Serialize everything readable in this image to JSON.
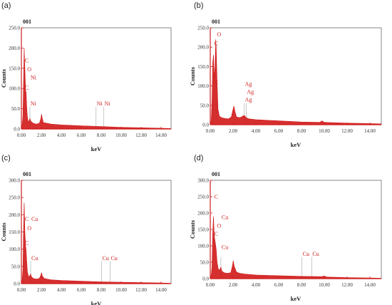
{
  "panel_labels": [
    "(a)",
    "(b)",
    "(c)",
    "(d)"
  ],
  "colors": {
    "spectrum": "#d01818",
    "axis": "#cc1f1f",
    "tick_text": "#333333",
    "element_label": "#cc1f1f",
    "marker_line": "#bbbbbb",
    "frame": "#555555"
  },
  "chart_data": [
    {
      "type": "line",
      "panel": "(a)",
      "header": "001",
      "xlabel": "keV",
      "ylabel": "Counts",
      "xlim": [
        0,
        15
      ],
      "ylim": [
        0,
        250
      ],
      "x_ticks": [
        0.0,
        2.0,
        4.0,
        6.0,
        8.0,
        10.0,
        12.0,
        14.0
      ],
      "x_tick_labels": [
        "0.00",
        "2.00",
        "4.00",
        "6.00",
        "8.00",
        "10.00",
        "12.00",
        "14.00"
      ],
      "y_ticks": [
        0,
        50,
        100,
        150,
        200,
        250
      ],
      "y_tick_labels": [
        "0.0",
        "50.0",
        "100.0",
        "150.0",
        "200.0",
        "250.0"
      ],
      "spectrum": [
        [
          0.0,
          5
        ],
        [
          0.08,
          10
        ],
        [
          0.15,
          30
        ],
        [
          0.22,
          120
        ],
        [
          0.28,
          200
        ],
        [
          0.35,
          150
        ],
        [
          0.42,
          95
        ],
        [
          0.48,
          90
        ],
        [
          0.52,
          60
        ],
        [
          0.6,
          30
        ],
        [
          0.68,
          18
        ],
        [
          0.78,
          20
        ],
        [
          0.85,
          26
        ],
        [
          0.92,
          20
        ],
        [
          1.0,
          18
        ],
        [
          1.2,
          14
        ],
        [
          1.5,
          12
        ],
        [
          1.8,
          14
        ],
        [
          1.95,
          25
        ],
        [
          2.02,
          37
        ],
        [
          2.1,
          26
        ],
        [
          2.2,
          16
        ],
        [
          2.6,
          14
        ],
        [
          3.0,
          12
        ],
        [
          4.0,
          10
        ],
        [
          6.0,
          8
        ],
        [
          8.0,
          6
        ],
        [
          10.0,
          4
        ],
        [
          12.0,
          3
        ],
        [
          14.0,
          2
        ],
        [
          15.0,
          1
        ]
      ],
      "elements": [
        {
          "label": "C",
          "x": 0.28,
          "y": 165
        },
        {
          "label": "O",
          "x": 0.52,
          "y": 143
        },
        {
          "label": "Ni",
          "x": 0.85,
          "y": 122
        },
        {
          "label": "C",
          "x": 0.28,
          "y": 97
        },
        {
          "label": "Ni",
          "x": 0.85,
          "y": 58
        },
        {
          "label": "Ni",
          "x": 7.48,
          "y": 58
        },
        {
          "label": "Ni",
          "x": 8.26,
          "y": 58
        }
      ],
      "markers": [
        0.85,
        7.48,
        8.26
      ]
    },
    {
      "type": "line",
      "panel": "(b)",
      "header": "001",
      "xlabel": "keV",
      "ylabel": "Counts",
      "xlim": [
        0,
        15
      ],
      "ylim": [
        0,
        250
      ],
      "x_ticks": [
        0.0,
        2.0,
        4.0,
        6.0,
        8.0,
        10.0,
        12.0,
        14.0
      ],
      "x_tick_labels": [
        "0.00",
        "2.00",
        "4.00",
        "6.00",
        "8.00",
        "10.00",
        "12.00",
        "14.00"
      ],
      "y_ticks": [
        0,
        50,
        100,
        150,
        200,
        250
      ],
      "y_tick_labels": [
        "0.0",
        "50.0",
        "100.0",
        "150.0",
        "200.0",
        "250.0"
      ],
      "spectrum": [
        [
          0.0,
          5
        ],
        [
          0.08,
          10
        ],
        [
          0.15,
          60
        ],
        [
          0.22,
          160
        ],
        [
          0.28,
          180
        ],
        [
          0.35,
          120
        ],
        [
          0.42,
          150
        ],
        [
          0.48,
          220
        ],
        [
          0.52,
          200
        ],
        [
          0.6,
          110
        ],
        [
          0.68,
          40
        ],
        [
          0.8,
          22
        ],
        [
          1.0,
          18
        ],
        [
          1.3,
          16
        ],
        [
          1.6,
          15
        ],
        [
          1.85,
          20
        ],
        [
          2.0,
          40
        ],
        [
          2.08,
          48
        ],
        [
          2.16,
          34
        ],
        [
          2.3,
          20
        ],
        [
          2.6,
          18
        ],
        [
          2.98,
          24
        ],
        [
          3.15,
          18
        ],
        [
          3.4,
          15
        ],
        [
          4.0,
          13
        ],
        [
          6.0,
          10
        ],
        [
          8.0,
          7
        ],
        [
          9.6,
          6
        ],
        [
          9.8,
          10
        ],
        [
          10.0,
          6
        ],
        [
          12.0,
          4
        ],
        [
          14.0,
          3
        ],
        [
          15.0,
          2
        ]
      ],
      "elements": [
        {
          "label": "O",
          "x": 0.52,
          "y": 228
        },
        {
          "label": "C",
          "x": 0.28,
          "y": 205
        },
        {
          "label": "C",
          "x": 0.28,
          "y": 105
        },
        {
          "label": "Ag",
          "x": 2.98,
          "y": 100
        },
        {
          "label": "Ag",
          "x": 3.15,
          "y": 80
        },
        {
          "label": "Ag",
          "x": 2.98,
          "y": 60
        }
      ],
      "markers": [
        0.28,
        0.52,
        2.98,
        3.15
      ]
    },
    {
      "type": "line",
      "panel": "(c)",
      "header": "001",
      "xlabel": "keV",
      "ylabel": "Counts",
      "xlim": [
        0,
        15
      ],
      "ylim": [
        0,
        300
      ],
      "x_ticks": [
        0.0,
        2.0,
        4.0,
        6.0,
        8.0,
        10.0,
        12.0,
        14.0
      ],
      "x_tick_labels": [
        "0.00",
        "2.00",
        "4.00",
        "6.00",
        "8.00",
        "10.00",
        "12.00",
        "14.00"
      ],
      "y_ticks": [
        0,
        50,
        100,
        150,
        200,
        250,
        300
      ],
      "y_tick_labels": [
        "0.0",
        "50.0",
        "100.0",
        "150.0",
        "200.0",
        "250.0",
        "300.0"
      ],
      "spectrum": [
        [
          0.0,
          5
        ],
        [
          0.08,
          10
        ],
        [
          0.15,
          40
        ],
        [
          0.22,
          160
        ],
        [
          0.28,
          235
        ],
        [
          0.35,
          150
        ],
        [
          0.42,
          110
        ],
        [
          0.48,
          95
        ],
        [
          0.52,
          70
        ],
        [
          0.6,
          35
        ],
        [
          0.7,
          22
        ],
        [
          0.8,
          20
        ],
        [
          0.93,
          28
        ],
        [
          1.0,
          20
        ],
        [
          1.2,
          15
        ],
        [
          1.5,
          13
        ],
        [
          1.8,
          15
        ],
        [
          1.95,
          24
        ],
        [
          2.02,
          32
        ],
        [
          2.1,
          22
        ],
        [
          2.3,
          15
        ],
        [
          2.6,
          13
        ],
        [
          3.0,
          11
        ],
        [
          4.0,
          9
        ],
        [
          6.0,
          7
        ],
        [
          8.0,
          5
        ],
        [
          10.0,
          4
        ],
        [
          12.0,
          3
        ],
        [
          14.0,
          2
        ],
        [
          15.0,
          1
        ]
      ],
      "elements": [
        {
          "label": "C",
          "x": 0.28,
          "y": 182
        },
        {
          "label": "Cu",
          "x": 0.93,
          "y": 182
        },
        {
          "label": "O",
          "x": 0.52,
          "y": 155
        },
        {
          "label": "C",
          "x": 0.28,
          "y": 113
        },
        {
          "label": "Cu",
          "x": 0.93,
          "y": 68
        },
        {
          "label": "Cu",
          "x": 8.04,
          "y": 68
        },
        {
          "label": "Cu",
          "x": 8.9,
          "y": 68
        }
      ],
      "markers": [
        0.93,
        8.04,
        8.9
      ]
    },
    {
      "type": "line",
      "panel": "(d)",
      "header": "001",
      "xlabel": "keV",
      "ylabel": "Counts",
      "xlim": [
        0,
        15
      ],
      "ylim": [
        0,
        300
      ],
      "x_ticks": [
        0.0,
        2.0,
        4.0,
        6.0,
        8.0,
        10.0,
        12.0,
        14.0
      ],
      "x_tick_labels": [
        "0.00",
        "2.00",
        "4.00",
        "6.00",
        "8.00",
        "10.00",
        "12.00",
        "14.00"
      ],
      "y_ticks": [
        0,
        50,
        100,
        150,
        200,
        250,
        300
      ],
      "y_tick_labels": [
        "0.0",
        "50.0",
        "100.0",
        "150.0",
        "200.0",
        "250.0",
        "300.0"
      ],
      "spectrum": [
        [
          0.0,
          5
        ],
        [
          0.08,
          10
        ],
        [
          0.15,
          35
        ],
        [
          0.22,
          140
        ],
        [
          0.28,
          190
        ],
        [
          0.35,
          130
        ],
        [
          0.42,
          115
        ],
        [
          0.48,
          100
        ],
        [
          0.52,
          90
        ],
        [
          0.6,
          50
        ],
        [
          0.7,
          30
        ],
        [
          0.8,
          25
        ],
        [
          0.93,
          35
        ],
        [
          1.0,
          24
        ],
        [
          1.2,
          18
        ],
        [
          1.5,
          16
        ],
        [
          1.8,
          18
        ],
        [
          1.95,
          40
        ],
        [
          2.02,
          55
        ],
        [
          2.1,
          38
        ],
        [
          2.3,
          20
        ],
        [
          2.6,
          16
        ],
        [
          3.0,
          14
        ],
        [
          4.0,
          11
        ],
        [
          6.0,
          9
        ],
        [
          8.0,
          7
        ],
        [
          9.8,
          6
        ],
        [
          10.0,
          8
        ],
        [
          10.2,
          5
        ],
        [
          12.0,
          3
        ],
        [
          14.0,
          2
        ],
        [
          15.0,
          1
        ]
      ],
      "elements": [
        {
          "label": "C",
          "x": 0.28,
          "y": 243
        },
        {
          "label": "Cu",
          "x": 0.93,
          "y": 182
        },
        {
          "label": "O",
          "x": 0.52,
          "y": 155
        },
        {
          "label": "C",
          "x": 0.28,
          "y": 130
        },
        {
          "label": "Cu",
          "x": 0.93,
          "y": 90
        },
        {
          "label": "Cu",
          "x": 8.04,
          "y": 70
        },
        {
          "label": "Cu",
          "x": 8.9,
          "y": 70
        }
      ],
      "markers": [
        0.93,
        8.04,
        8.9
      ]
    }
  ]
}
